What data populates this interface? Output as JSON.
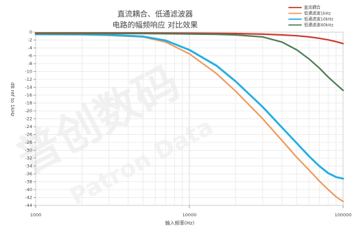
{
  "chart_data": {
    "type": "line",
    "title_lines": [
      "直流耦合、低通滤波器",
      "电路的幅频响应 对比效果"
    ],
    "xlabel": "输入频率(Hz)",
    "ylabel": "dB ref to 1kHz",
    "x_scale": "log",
    "xlim": [
      1000,
      100000
    ],
    "ylim": [
      -44,
      0
    ],
    "x_ticks": [
      1000,
      10000,
      100000
    ],
    "x_tick_labels": [
      "1000",
      "10000",
      "100000"
    ],
    "y_ticks": [
      0,
      -2,
      -4,
      -6,
      -8,
      -10,
      -12,
      -14,
      -16,
      -18,
      -20,
      -22,
      -24,
      -26,
      -28,
      -30,
      -32,
      -34,
      -36,
      -38,
      -40,
      -42,
      -44
    ],
    "y_tick_labels": [
      "0",
      "-2",
      "-4",
      "-6",
      "-8",
      "-10",
      "-12",
      "-14",
      "-16",
      "-18",
      "-20",
      "-22",
      "-24",
      "-26",
      "-28",
      "-30",
      "-32",
      "-34",
      "-36",
      "-38",
      "-40",
      "-42",
      "-44"
    ],
    "grid": true,
    "legend_position": "top-right",
    "series": [
      {
        "name": "直流耦合",
        "color": "#cc3a2f",
        "points": [
          [
            1000,
            -0.2
          ],
          [
            5000,
            -0.2
          ],
          [
            10000,
            -0.25
          ],
          [
            20000,
            -0.35
          ],
          [
            30000,
            -0.5
          ],
          [
            40000,
            -0.7
          ],
          [
            50000,
            -0.9
          ],
          [
            60000,
            -1.2
          ],
          [
            70000,
            -1.55
          ],
          [
            80000,
            -1.95
          ],
          [
            90000,
            -2.4
          ],
          [
            100000,
            -2.9
          ]
        ]
      },
      {
        "name": "低通滤波1kHz",
        "color": "#ef9a59",
        "points": [
          [
            1000,
            -0.6
          ],
          [
            2000,
            -0.65
          ],
          [
            3000,
            -0.8
          ],
          [
            5000,
            -1.2
          ],
          [
            7000,
            -2.5
          ],
          [
            10000,
            -5.5
          ],
          [
            15000,
            -10.5
          ],
          [
            20000,
            -15
          ],
          [
            30000,
            -22
          ],
          [
            40000,
            -27.5
          ],
          [
            50000,
            -31.8
          ],
          [
            60000,
            -35
          ],
          [
            70000,
            -37.8
          ],
          [
            80000,
            -40
          ],
          [
            90000,
            -41.8
          ],
          [
            100000,
            -43
          ]
        ]
      },
      {
        "name": "低通滤波10kHz",
        "color": "#22aee5",
        "points": [
          [
            1000,
            -0.5
          ],
          [
            2000,
            -0.55
          ],
          [
            3000,
            -0.7
          ],
          [
            5000,
            -1.1
          ],
          [
            7000,
            -2.1
          ],
          [
            10000,
            -4.5
          ],
          [
            15000,
            -8.5
          ],
          [
            20000,
            -12.5
          ],
          [
            30000,
            -19
          ],
          [
            40000,
            -24.2
          ],
          [
            50000,
            -28.2
          ],
          [
            60000,
            -31.5
          ],
          [
            70000,
            -34
          ],
          [
            80000,
            -35.8
          ],
          [
            90000,
            -36.8
          ],
          [
            100000,
            -37.2
          ]
        ]
      },
      {
        "name": "低通滤波40kHz",
        "color": "#4a7d56",
        "points": [
          [
            1000,
            -0.35
          ],
          [
            5000,
            -0.35
          ],
          [
            10000,
            -0.45
          ],
          [
            15000,
            -0.55
          ],
          [
            20000,
            -0.7
          ],
          [
            30000,
            -1.2
          ],
          [
            40000,
            -2.5
          ],
          [
            50000,
            -4.5
          ],
          [
            60000,
            -6.8
          ],
          [
            70000,
            -9.1
          ],
          [
            80000,
            -11.4
          ],
          [
            90000,
            -13.2
          ],
          [
            100000,
            -14.8
          ]
        ]
      }
    ]
  },
  "watermark": {
    "main": "普创数码",
    "sub": "Patron Data"
  }
}
